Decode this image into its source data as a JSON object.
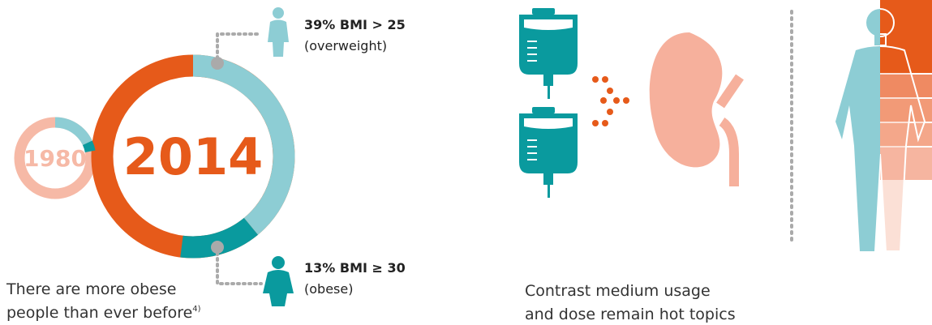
{
  "obesity": {
    "ring_1980": {
      "year": "1980",
      "segments": [
        {
          "value": 18,
          "color": "#8dcdd4"
        },
        {
          "value": 4,
          "color": "#0a9a9e"
        }
      ]
    },
    "ring_2014": {
      "year": "2014",
      "segments": [
        {
          "value": 39,
          "color": "#8dcdd4",
          "label": "39% BMI > 25",
          "sublabel": "(overweight)"
        },
        {
          "value": 13,
          "color": "#0a9a9e",
          "label": "13% BMI ≥ 30",
          "sublabel": "(obese)"
        }
      ]
    },
    "caption": [
      "There are more obese",
      "people than ever before"
    ],
    "footnote": "4)"
  },
  "contrast": {
    "caption": [
      "Contrast medium usage",
      "and dose remain hot topics"
    ]
  }
}
